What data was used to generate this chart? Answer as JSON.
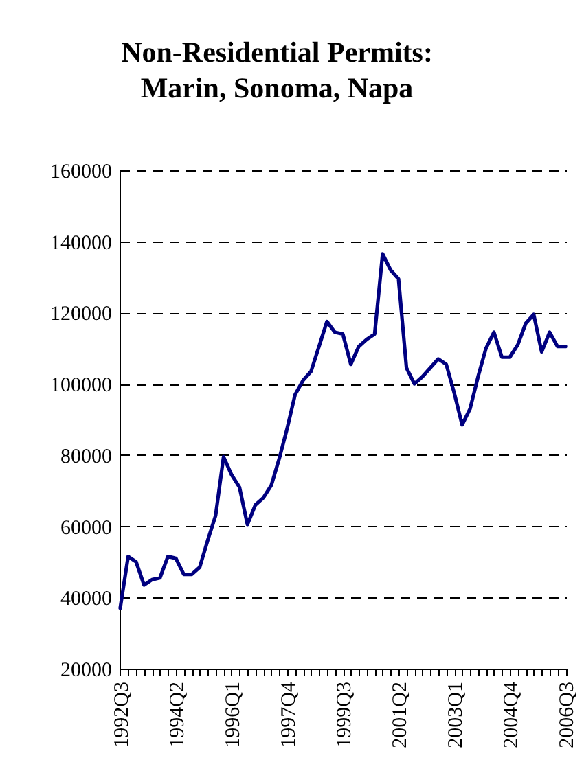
{
  "chart_data": {
    "type": "line",
    "title": "Non-Residential Permits:\nMarin, Sonoma, Napa",
    "categories": [
      "1992Q3",
      null,
      null,
      null,
      null,
      null,
      null,
      "1994Q2",
      null,
      null,
      null,
      null,
      null,
      null,
      "1996Q1",
      null,
      null,
      null,
      null,
      null,
      null,
      "1997Q4",
      null,
      null,
      null,
      null,
      null,
      null,
      "1999Q3",
      null,
      null,
      null,
      null,
      null,
      null,
      "2001Q2",
      null,
      null,
      null,
      null,
      null,
      null,
      "2003Q1",
      null,
      null,
      null,
      null,
      null,
      null,
      "2004Q4",
      null,
      null,
      null,
      null,
      null,
      null,
      "2006Q3"
    ],
    "series": [
      {
        "color": "#000080",
        "values": [
          37000,
          51500,
          50000,
          43500,
          45000,
          45500,
          51500,
          51000,
          46500,
          46500,
          48500,
          56000,
          63000,
          79500,
          74500,
          71000,
          60500,
          66000,
          68000,
          71500,
          79000,
          87500,
          97000,
          101000,
          103500,
          110500,
          117500,
          114500,
          114000,
          105500,
          110500,
          112500,
          114000,
          136500,
          132000,
          129500,
          104500,
          100000,
          102000,
          104500,
          107000,
          105500,
          97500,
          88500,
          93000,
          102000,
          110000,
          114500,
          107500,
          107500,
          111000,
          117000,
          119500,
          109000,
          114500,
          110500,
          110500
        ]
      }
    ],
    "ylim": [
      20000,
      160000
    ],
    "yticks": [
      20000,
      40000,
      60000,
      80000,
      100000,
      120000,
      140000,
      160000
    ],
    "grid": "y",
    "legend": false,
    "marker": "none",
    "line_style": "solid"
  }
}
